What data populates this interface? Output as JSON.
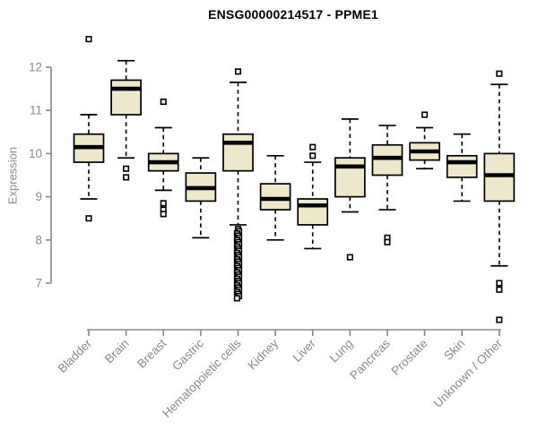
{
  "chart_data": {
    "type": "boxplot",
    "title": "ENSG00000214517 - PPME1",
    "ylabel": "Expression",
    "xlabel": "",
    "y_axis": {
      "ticks": [
        7,
        8,
        9,
        10,
        11,
        12
      ],
      "tick_top_value": 12,
      "tick_bottom_value": 7
    },
    "grid": false,
    "legend": "none",
    "colors": {
      "box_fill": "#EDE8CC",
      "box_border": "#000000",
      "median": "#000000",
      "whisker": "#000000",
      "outlier": "#000000",
      "axis": "#898989",
      "tick_label": "#8C8C8C",
      "title": "#000000",
      "background": "#FFFFFF"
    },
    "categories": [
      "Bladder",
      "Brain",
      "Breast",
      "Gastric",
      "Hematopoietic cells",
      "Kidney",
      "Liver",
      "Lung",
      "Pancreas",
      "Prostate",
      "Skin",
      "Unknown / Other"
    ],
    "boxes": [
      {
        "label": "Bladder",
        "whisker_low": 8.95,
        "q1": 9.8,
        "median": 10.15,
        "q3": 10.45,
        "whisker_high": 10.9,
        "outliers": [
          12.65,
          8.5
        ]
      },
      {
        "label": "Brain",
        "whisker_low": 9.9,
        "q1": 10.9,
        "median": 11.5,
        "q3": 11.7,
        "whisker_high": 12.15,
        "outliers": [
          9.65,
          9.45
        ]
      },
      {
        "label": "Breast",
        "whisker_low": 9.15,
        "q1": 9.6,
        "median": 9.8,
        "q3": 10.0,
        "whisker_high": 10.6,
        "outliers": [
          11.2,
          8.85,
          8.7,
          8.6
        ]
      },
      {
        "label": "Gastric",
        "whisker_low": 8.05,
        "q1": 8.9,
        "median": 9.2,
        "q3": 9.55,
        "whisker_high": 9.9,
        "outliers": []
      },
      {
        "label": "Hematopoietic cells",
        "whisker_low": 8.35,
        "q1": 9.6,
        "median": 10.25,
        "q3": 10.45,
        "whisker_high": 11.65,
        "outliers": [
          11.9,
          8.25,
          8.2,
          8.15,
          8.1,
          8.05,
          8.0,
          7.95,
          7.9,
          7.85,
          7.8,
          7.75,
          7.7,
          7.65,
          7.6,
          7.55,
          7.5,
          7.45,
          7.4,
          7.35,
          7.3,
          7.25,
          7.2,
          7.15,
          7.1,
          7.05,
          7.0,
          6.95,
          6.9,
          6.85,
          6.8,
          6.75,
          6.7,
          6.65
        ]
      },
      {
        "label": "Kidney",
        "whisker_low": 8.0,
        "q1": 8.7,
        "median": 8.95,
        "q3": 9.3,
        "whisker_high": 9.95,
        "outliers": []
      },
      {
        "label": "Liver",
        "whisker_low": 7.8,
        "q1": 8.35,
        "median": 8.8,
        "q3": 8.95,
        "whisker_high": 9.8,
        "outliers": [
          10.15,
          9.95
        ]
      },
      {
        "label": "Lung",
        "whisker_low": 8.65,
        "q1": 9.0,
        "median": 9.7,
        "q3": 9.9,
        "whisker_high": 10.8,
        "outliers": [
          7.6
        ]
      },
      {
        "label": "Pancreas",
        "whisker_low": 8.7,
        "q1": 9.5,
        "median": 9.9,
        "q3": 10.2,
        "whisker_high": 10.65,
        "outliers": [
          8.05,
          7.95
        ]
      },
      {
        "label": "Prostate",
        "whisker_low": 9.65,
        "q1": 9.85,
        "median": 10.05,
        "q3": 10.25,
        "whisker_high": 10.6,
        "outliers": [
          10.9
        ]
      },
      {
        "label": "Skin",
        "whisker_low": 8.9,
        "q1": 9.45,
        "median": 9.8,
        "q3": 9.95,
        "whisker_high": 10.45,
        "outliers": []
      },
      {
        "label": "Unknown / Other",
        "whisker_low": 7.4,
        "q1": 8.9,
        "median": 9.5,
        "q3": 10.0,
        "whisker_high": 11.6,
        "outliers": [
          11.85,
          7.0,
          6.85,
          6.15
        ]
      }
    ]
  }
}
